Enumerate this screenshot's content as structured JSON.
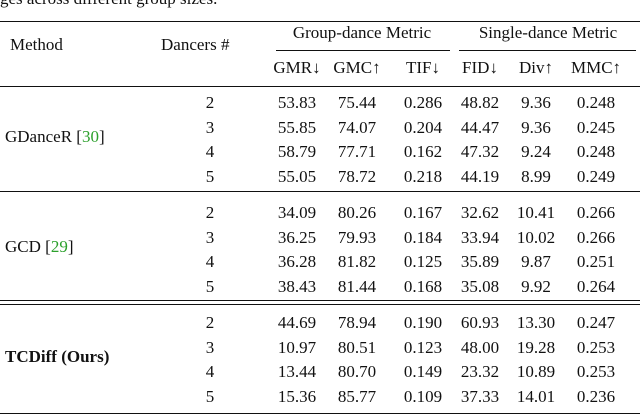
{
  "caption": "ges across different group sizes.",
  "header": {
    "method": "Method",
    "dancers": "Dancers #",
    "group_metric": "Group-dance Metric",
    "single_metric": "Single-dance Metric",
    "metrics": [
      "GMR↓",
      "GMC↑",
      "TIF↓",
      "FID↓",
      "Div↑",
      "MMC↑"
    ]
  },
  "groups": [
    {
      "method": [
        "GDanceR [",
        "30",
        "]"
      ],
      "rows": [
        [
          "2",
          "53.83",
          "75.44",
          "0.286",
          "48.82",
          "9.36",
          "0.248"
        ],
        [
          "3",
          "55.85",
          "74.07",
          "0.204",
          "44.47",
          "9.36",
          "0.245"
        ],
        [
          "4",
          "58.79",
          "77.71",
          "0.162",
          "47.32",
          "9.24",
          "0.248"
        ],
        [
          "5",
          "55.05",
          "78.72",
          "0.218",
          "44.19",
          "8.99",
          "0.249"
        ]
      ]
    },
    {
      "method": [
        "GCD [",
        "29",
        "]"
      ],
      "rows": [
        [
          "2",
          "34.09",
          "80.26",
          "0.167",
          "32.62",
          "10.41",
          "0.266"
        ],
        [
          "3",
          "36.25",
          "79.93",
          "0.184",
          "33.94",
          "10.02",
          "0.266"
        ],
        [
          "4",
          "36.28",
          "81.82",
          "0.125",
          "35.89",
          "9.87",
          "0.251"
        ],
        [
          "5",
          "38.43",
          "81.44",
          "0.168",
          "35.08",
          "9.92",
          "0.264"
        ]
      ]
    },
    {
      "method": [
        "TCDiff (Ours)"
      ],
      "bold": true,
      "rows": [
        [
          "2",
          "44.69",
          "78.94",
          "0.190",
          "60.93",
          "13.30",
          "0.247"
        ],
        [
          "3",
          "10.97",
          "80.51",
          "0.123",
          "48.00",
          "19.28",
          "0.253"
        ],
        [
          "4",
          "13.44",
          "80.70",
          "0.149",
          "23.32",
          "10.89",
          "0.253"
        ],
        [
          "5",
          "15.36",
          "85.77",
          "0.109",
          "37.33",
          "14.01",
          "0.236"
        ]
      ]
    }
  ]
}
